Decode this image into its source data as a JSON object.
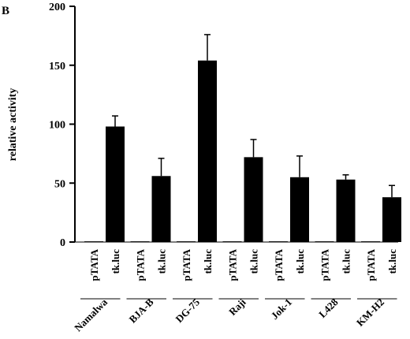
{
  "panel_label": "B",
  "chart_data": {
    "type": "bar",
    "title": "",
    "xlabel": "",
    "ylabel": "relative activity",
    "ylim": [
      0,
      200
    ],
    "yticks": [
      0,
      50,
      100,
      150,
      200
    ],
    "grid": false,
    "legend": "none",
    "bar_color": "#000000",
    "groups": [
      {
        "name": "Namalwa",
        "bars": [
          {
            "label": "pTATA",
            "value": 0.6,
            "error": 0
          },
          {
            "label": "tk.luc",
            "value": 98,
            "error": 9
          }
        ]
      },
      {
        "name": "BJA-B",
        "bars": [
          {
            "label": "pTATA",
            "value": 0.6,
            "error": 0
          },
          {
            "label": "tk.luc",
            "value": 56,
            "error": 15
          }
        ]
      },
      {
        "name": "DG-75",
        "bars": [
          {
            "label": "pTATA",
            "value": 0.6,
            "error": 0
          },
          {
            "label": "tk.luc",
            "value": 154,
            "error": 22
          }
        ]
      },
      {
        "name": "Raji",
        "bars": [
          {
            "label": "pTATA",
            "value": 0.6,
            "error": 0
          },
          {
            "label": "tk.luc",
            "value": 72,
            "error": 15
          }
        ]
      },
      {
        "name": "Jok-1",
        "bars": [
          {
            "label": "pTATA",
            "value": 0.6,
            "error": 0
          },
          {
            "label": "tk.luc",
            "value": 55,
            "error": 18
          }
        ]
      },
      {
        "name": "L428",
        "bars": [
          {
            "label": "pTATA",
            "value": 0.6,
            "error": 0
          },
          {
            "label": "tk.luc",
            "value": 53,
            "error": 4
          }
        ]
      },
      {
        "name": "KM-H2",
        "bars": [
          {
            "label": "pTATA",
            "value": 0.6,
            "error": 0
          },
          {
            "label": "tk.luc",
            "value": 38,
            "error": 10
          }
        ]
      }
    ]
  }
}
